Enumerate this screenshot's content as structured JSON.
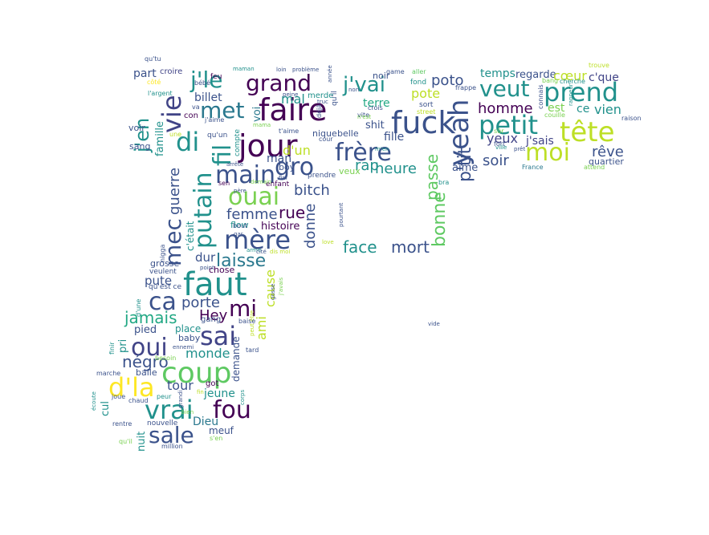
{
  "palette": {
    "dark_purple": "#440154",
    "indigo": "#3b528b",
    "slate": "#414487",
    "teal": "#21918c",
    "cyan": "#2a788e",
    "sea": "#22a884",
    "green": "#5ec962",
    "lime": "#7ad151",
    "yellow_green": "#bddf26",
    "yellow": "#fde725"
  },
  "words": [
    {
      "text": "faire",
      "color": "dark_purple"
    },
    {
      "text": "jour",
      "color": "dark_purple"
    },
    {
      "text": "faut",
      "color": "teal"
    },
    {
      "text": "fuck",
      "color": "indigo"
    },
    {
      "text": "prend",
      "color": "teal"
    },
    {
      "text": "tête",
      "color": "yellow_green"
    },
    {
      "text": "petit",
      "color": "teal"
    },
    {
      "text": "moi",
      "color": "yellow_green"
    },
    {
      "text": "veut",
      "color": "teal"
    },
    {
      "text": "frère",
      "color": "indigo"
    },
    {
      "text": "yeah",
      "color": "indigo"
    },
    {
      "text": "coup",
      "color": "green"
    },
    {
      "text": "vrai",
      "color": "teal"
    },
    {
      "text": "fou",
      "color": "dark_purple"
    },
    {
      "text": "sale",
      "color": "indigo"
    },
    {
      "text": "mère",
      "color": "indigo"
    },
    {
      "text": "ouai",
      "color": "lime"
    },
    {
      "text": "main",
      "color": "indigo"
    },
    {
      "text": "grand",
      "color": "dark_purple"
    },
    {
      "text": "j'le",
      "color": "teal"
    },
    {
      "text": "j'vai",
      "color": "teal"
    },
    {
      "text": "met",
      "color": "cyan"
    },
    {
      "text": "di",
      "color": "teal"
    },
    {
      "text": "vie",
      "color": "slate"
    },
    {
      "text": "j'en",
      "color": "teal"
    },
    {
      "text": "putain",
      "color": "teal"
    },
    {
      "text": "fil",
      "color": "teal"
    },
    {
      "text": "mec",
      "color": "indigo"
    },
    {
      "text": "ca",
      "color": "indigo"
    },
    {
      "text": "mi",
      "color": "dark_purple"
    },
    {
      "text": "sai",
      "color": "slate"
    },
    {
      "text": "oui",
      "color": "slate"
    },
    {
      "text": "d'la",
      "color": "yellow"
    },
    {
      "text": "laisse",
      "color": "cyan"
    },
    {
      "text": "gro",
      "color": "indigo"
    },
    {
      "text": "poto",
      "color": "indigo"
    },
    {
      "text": "homme",
      "color": "dark_purple"
    },
    {
      "text": "soir",
      "color": "indigo"
    },
    {
      "text": "rêve",
      "color": "indigo"
    },
    {
      "text": "yeux",
      "color": "slate"
    },
    {
      "text": "p'tit",
      "color": "indigo"
    },
    {
      "text": "passe",
      "color": "green"
    },
    {
      "text": "bonne",
      "color": "green"
    },
    {
      "text": "rap",
      "color": "teal"
    },
    {
      "text": "heure",
      "color": "teal"
    },
    {
      "text": "face",
      "color": "teal"
    },
    {
      "text": "mort",
      "color": "indigo"
    },
    {
      "text": "rue",
      "color": "dark_purple"
    },
    {
      "text": "bitch",
      "color": "indigo"
    },
    {
      "text": "femme",
      "color": "indigo"
    },
    {
      "text": "donne",
      "color": "indigo"
    },
    {
      "text": "histoire",
      "color": "dark_purple"
    },
    {
      "text": "guerre",
      "color": "indigo"
    },
    {
      "text": "jamais",
      "color": "sea"
    },
    {
      "text": "porte",
      "color": "indigo"
    },
    {
      "text": "Hey",
      "color": "dark_purple"
    },
    {
      "text": "pute",
      "color": "indigo"
    },
    {
      "text": "dur",
      "color": "indigo"
    },
    {
      "text": "monde",
      "color": "teal"
    },
    {
      "text": "négro",
      "color": "indigo"
    },
    {
      "text": "tour",
      "color": "indigo"
    },
    {
      "text": "jeune",
      "color": "teal"
    },
    {
      "text": "Dieu",
      "color": "cyan"
    },
    {
      "text": "meuf",
      "color": "indigo"
    },
    {
      "text": "temps",
      "color": "teal"
    },
    {
      "text": "regarde",
      "color": "indigo"
    },
    {
      "text": "cœur",
      "color": "yellow_green"
    },
    {
      "text": "c'que",
      "color": "slate"
    },
    {
      "text": "vien",
      "color": "teal"
    },
    {
      "text": "est",
      "color": "lime"
    },
    {
      "text": "ce",
      "color": "teal"
    },
    {
      "text": "j'sais",
      "color": "slate"
    },
    {
      "text": "aime",
      "color": "indigo"
    },
    {
      "text": "quartier",
      "color": "indigo"
    },
    {
      "text": "pote",
      "color": "yellow_green"
    },
    {
      "text": "terre",
      "color": "sea"
    },
    {
      "text": "shit",
      "color": "indigo"
    },
    {
      "text": "fille",
      "color": "indigo"
    },
    {
      "text": "d'un",
      "color": "yellow_green"
    },
    {
      "text": "man",
      "color": "indigo"
    },
    {
      "text": "mal",
      "color": "teal"
    },
    {
      "text": "billet",
      "color": "indigo"
    },
    {
      "text": "part",
      "color": "indigo"
    },
    {
      "text": "voir",
      "color": "indigo"
    },
    {
      "text": "sang",
      "color": "indigo"
    },
    {
      "text": "famille",
      "color": "teal"
    },
    {
      "text": "grosse",
      "color": "indigo"
    },
    {
      "text": "c'était",
      "color": "teal"
    },
    {
      "text": "chose",
      "color": "dark_purple"
    },
    {
      "text": "ami",
      "color": "yellow_green"
    },
    {
      "text": "cause",
      "color": "yellow_green"
    },
    {
      "text": "pied",
      "color": "indigo"
    },
    {
      "text": "pri",
      "color": "teal"
    },
    {
      "text": "demande",
      "color": "indigo"
    },
    {
      "text": "cul",
      "color": "teal"
    },
    {
      "text": "nuit",
      "color": "teal"
    },
    {
      "text": "noir",
      "color": "indigo"
    },
    {
      "text": "voi",
      "color": "cyan"
    },
    {
      "text": "gang",
      "color": "indigo"
    },
    {
      "text": "place",
      "color": "teal"
    },
    {
      "text": "baby",
      "color": "indigo"
    },
    {
      "text": "balle",
      "color": "indigo"
    },
    {
      "text": "got",
      "color": "dark_purple"
    },
    {
      "text": "boy",
      "color": "indigo"
    },
    {
      "text": "flow",
      "color": "teal"
    },
    {
      "text": "veux",
      "color": "lime"
    },
    {
      "text": "enfant",
      "color": "dark_purple"
    },
    {
      "text": "prendre",
      "color": "indigo"
    },
    {
      "text": "croire",
      "color": "slate"
    },
    {
      "text": "qu'tu",
      "color": "indigo"
    },
    {
      "text": "maman",
      "color": "teal"
    },
    {
      "text": "loin",
      "color": "indigo"
    },
    {
      "text": "problème",
      "color": "indigo"
    },
    {
      "text": "game",
      "color": "indigo"
    },
    {
      "text": "aller",
      "color": "green"
    },
    {
      "text": "trouve",
      "color": "yellow_green"
    },
    {
      "text": "feu",
      "color": "dark_purple"
    },
    {
      "text": "bébé",
      "color": "indigo"
    },
    {
      "text": "l'argent",
      "color": "teal"
    },
    {
      "text": "côté",
      "color": "yellow"
    },
    {
      "text": "année",
      "color": "indigo"
    },
    {
      "text": "bang",
      "color": "lime"
    },
    {
      "text": "cherche",
      "color": "teal"
    },
    {
      "text": "fond",
      "color": "teal"
    },
    {
      "text": "frappe",
      "color": "indigo"
    },
    {
      "text": "sort",
      "color": "indigo"
    },
    {
      "text": "street",
      "color": "yellow_green"
    },
    {
      "text": "crois",
      "color": "indigo"
    },
    {
      "text": "raison",
      "color": "indigo"
    },
    {
      "text": "couille",
      "color": "lime"
    },
    {
      "text": "connais",
      "color": "indigo"
    },
    {
      "text": "rappeur",
      "color": "teal"
    },
    {
      "text": "fort",
      "color": "indigo"
    },
    {
      "text": "ville",
      "color": "teal"
    },
    {
      "text": "prêt",
      "color": "indigo"
    },
    {
      "text": "France",
      "color": "cyan"
    },
    {
      "text": "attend",
      "color": "lime"
    },
    {
      "text": "sûr",
      "color": "lime"
    },
    {
      "text": "vite",
      "color": "indigo"
    },
    {
      "text": "belle",
      "color": "indigo"
    },
    {
      "text": "nique",
      "color": "indigo"
    },
    {
      "text": "t'aime",
      "color": "indigo"
    },
    {
      "text": "mama",
      "color": "lime"
    },
    {
      "text": "compte",
      "color": "teal"
    },
    {
      "text": "qu'un",
      "color": "indigo"
    },
    {
      "text": "j'aime",
      "color": "indigo"
    },
    {
      "text": "con",
      "color": "dark_purple"
    },
    {
      "text": "va",
      "color": "indigo"
    },
    {
      "text": "une",
      "color": "yellow_green"
    },
    {
      "text": "merde",
      "color": "teal"
    },
    {
      "text": "cour",
      "color": "indigo"
    },
    {
      "text": "déjà",
      "color": "indigo"
    },
    {
      "text": "truc",
      "color": "indigo"
    },
    {
      "text": "non",
      "color": "indigo"
    },
    {
      "text": "peine",
      "color": "indigo"
    },
    {
      "text": "arrête",
      "color": "indigo"
    },
    {
      "text": "sen",
      "color": "dark_purple"
    },
    {
      "text": "demain",
      "color": "lime"
    },
    {
      "text": "fini",
      "color": "indigo"
    },
    {
      "text": "père",
      "color": "indigo"
    },
    {
      "text": "bout",
      "color": "indigo"
    },
    {
      "text": "gar",
      "color": "indigo"
    },
    {
      "text": "pourtant",
      "color": "indigo"
    },
    {
      "text": "love",
      "color": "yellow_green"
    },
    {
      "text": "arme",
      "color": "teal"
    },
    {
      "text": "cité",
      "color": "indigo"
    },
    {
      "text": "dis moi",
      "color": "yellow_green"
    },
    {
      "text": "point",
      "color": "indigo"
    },
    {
      "text": "veulent",
      "color": "indigo"
    },
    {
      "text": "nigga",
      "color": "indigo"
    },
    {
      "text": "qu'est ce",
      "color": "indigo"
    },
    {
      "text": "d'une",
      "color": "teal"
    },
    {
      "text": "gosse",
      "color": "indigo"
    },
    {
      "text": "j'avais",
      "color": "lime"
    },
    {
      "text": "peut être",
      "color": "yellow_green"
    },
    {
      "text": "baise",
      "color": "indigo"
    },
    {
      "text": "ennemi",
      "color": "indigo"
    },
    {
      "text": "tard",
      "color": "indigo"
    },
    {
      "text": "besoin",
      "color": "lime"
    },
    {
      "text": "finir",
      "color": "teal"
    },
    {
      "text": "marche",
      "color": "indigo"
    },
    {
      "text": "écoute",
      "color": "teal"
    },
    {
      "text": "joue",
      "color": "indigo"
    },
    {
      "text": "chaud",
      "color": "indigo"
    },
    {
      "text": "peur",
      "color": "teal"
    },
    {
      "text": "rentre",
      "color": "indigo"
    },
    {
      "text": "nouvelle",
      "color": "indigo"
    },
    {
      "text": "grandi",
      "color": "indigo"
    },
    {
      "text": "fin",
      "color": "yellow_green"
    },
    {
      "text": "corps",
      "color": "teal"
    },
    {
      "text": "bien",
      "color": "lime"
    },
    {
      "text": "s'en",
      "color": "lime"
    },
    {
      "text": "qu'il",
      "color": "lime"
    },
    {
      "text": "million",
      "color": "indigo"
    },
    {
      "text": "vide",
      "color": "indigo"
    },
    {
      "text": "bra",
      "color": "teal"
    },
    {
      "text": "m'en",
      "color": "teal"
    },
    {
      "text": "n'est",
      "color": "lime"
    },
    {
      "text": "qu'il",
      "color": "indigo"
    }
  ]
}
